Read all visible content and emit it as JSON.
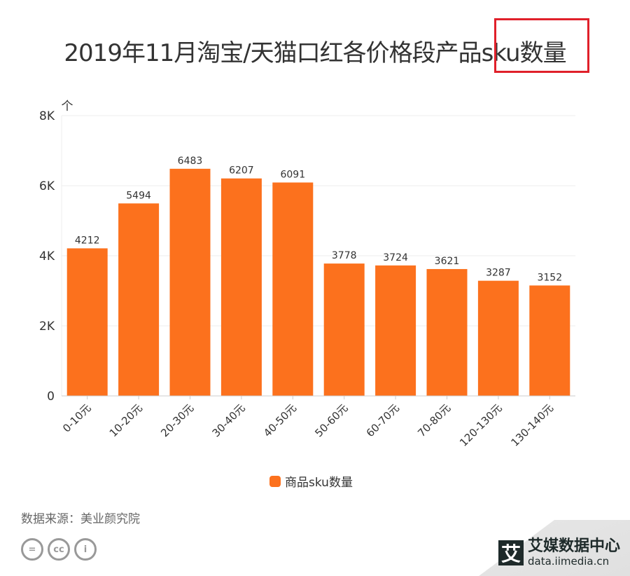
{
  "chart_data": {
    "type": "bar",
    "title": "2019年11月淘宝/天猫口红各价格段产品sku数量",
    "highlight": "sku数量",
    "ylabel": "个",
    "ylim": [
      0,
      8000
    ],
    "yticks": [
      "0",
      "2K",
      "4K",
      "6K",
      "8K"
    ],
    "ytick_values": [
      0,
      2000,
      4000,
      6000,
      8000
    ],
    "categories": [
      "0-10元",
      "10-20元",
      "20-30元",
      "30-40元",
      "40-50元",
      "50-60元",
      "60-70元",
      "70-80元",
      "120-130元",
      "130-140元"
    ],
    "series": [
      {
        "name": "商品sku数量",
        "values": [
          4212,
          5494,
          6483,
          6207,
          6091,
          3778,
          3724,
          3621,
          3287,
          3152
        ]
      }
    ],
    "color": "#fc711d",
    "grid": true,
    "legend_position": "bottom"
  },
  "footer": {
    "source": "数据来源：美业颜究院",
    "brand_name": "艾媒数据中心",
    "brand_url": "data.iimedia.cn",
    "brand_glyph": "艾",
    "cc_icons": [
      "nd-icon",
      "cc-icon",
      "by-icon"
    ]
  },
  "colors": {
    "highlight_box": "#e0202a"
  }
}
